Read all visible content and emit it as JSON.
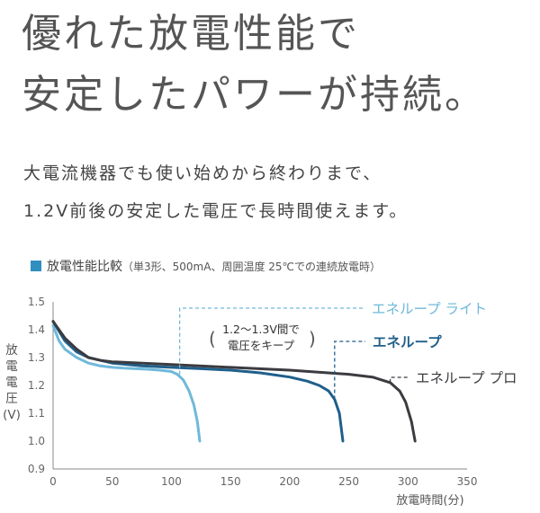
{
  "headline": {
    "line1": "優れた放電性能で",
    "line2": "安定したパワーが持続。"
  },
  "description": {
    "line1": "大電流機器でも使い始めから終わりまで、",
    "line2": "1.2V前後の安定した電圧で長時間使えます。"
  },
  "chart_data": {
    "type": "line",
    "title": "放電性能比較",
    "subtitle": "（単3形、500mA、周囲温度 25℃での連続放電時）",
    "xlabel": "放電時間(分)",
    "ylabel": "放電電圧(V)",
    "xlim": [
      0,
      350
    ],
    "ylim": [
      0.9,
      1.5
    ],
    "x_ticks": [
      0,
      50,
      100,
      150,
      200,
      250,
      300,
      350
    ],
    "y_ticks": [
      "1.5",
      "1.4",
      "1.3",
      "1.2",
      "1.1",
      "1.0",
      "0.9"
    ],
    "annotation": "1.2〜1.3V間で 電圧をキープ",
    "series": [
      {
        "name": "エネループ ライト",
        "color": "#6fb9d9",
        "points": [
          [
            0,
            1.415
          ],
          [
            5,
            1.36
          ],
          [
            10,
            1.33
          ],
          [
            20,
            1.3
          ],
          [
            30,
            1.28
          ],
          [
            40,
            1.27
          ],
          [
            50,
            1.265
          ],
          [
            60,
            1.262
          ],
          [
            70,
            1.26
          ],
          [
            80,
            1.258
          ],
          [
            90,
            1.255
          ],
          [
            100,
            1.25
          ],
          [
            105,
            1.24
          ],
          [
            110,
            1.22
          ],
          [
            115,
            1.18
          ],
          [
            119,
            1.13
          ],
          [
            122,
            1.07
          ],
          [
            124,
            1.0
          ]
        ]
      },
      {
        "name": "エネループ",
        "color": "#1f5f8b",
        "points": [
          [
            0,
            1.43
          ],
          [
            10,
            1.36
          ],
          [
            20,
            1.32
          ],
          [
            30,
            1.3
          ],
          [
            40,
            1.29
          ],
          [
            50,
            1.28
          ],
          [
            75,
            1.27
          ],
          [
            100,
            1.265
          ],
          [
            125,
            1.26
          ],
          [
            150,
            1.255
          ],
          [
            175,
            1.245
          ],
          [
            200,
            1.23
          ],
          [
            215,
            1.215
          ],
          [
            225,
            1.2
          ],
          [
            233,
            1.18
          ],
          [
            238,
            1.15
          ],
          [
            242,
            1.1
          ],
          [
            245,
            1.0
          ]
        ]
      },
      {
        "name": "エネループ プロ",
        "color": "#3b3b40",
        "points": [
          [
            0,
            1.43
          ],
          [
            10,
            1.37
          ],
          [
            20,
            1.33
          ],
          [
            30,
            1.3
          ],
          [
            40,
            1.29
          ],
          [
            50,
            1.285
          ],
          [
            100,
            1.275
          ],
          [
            150,
            1.265
          ],
          [
            200,
            1.255
          ],
          [
            250,
            1.24
          ],
          [
            270,
            1.23
          ],
          [
            285,
            1.21
          ],
          [
            293,
            1.18
          ],
          [
            298,
            1.14
          ],
          [
            303,
            1.07
          ],
          [
            306,
            1.0
          ]
        ]
      }
    ],
    "grid": false,
    "legend": "inline-right"
  }
}
